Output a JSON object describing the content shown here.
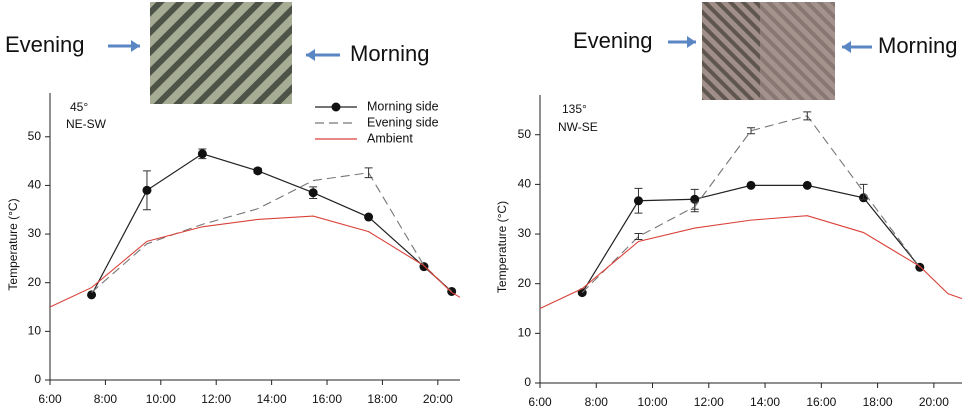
{
  "chart_data": [
    {
      "type": "line",
      "image_labels": [
        "Evening",
        "Morning"
      ],
      "annotations": [
        "45°",
        "NE-SW"
      ],
      "ylabel": "Temperature (°C)",
      "legend": "upper right",
      "xlim": [
        6,
        20.8
      ],
      "ylim": [
        0,
        59
      ],
      "xticks": [
        {
          "value": 6,
          "label": "6:00"
        },
        {
          "value": 8,
          "label": "8:00"
        },
        {
          "value": 10,
          "label": "10:00"
        },
        {
          "value": 12,
          "label": "12:00"
        },
        {
          "value": 14,
          "label": "14:00"
        },
        {
          "value": 16,
          "label": "16:00"
        },
        {
          "value": 18,
          "label": "18:00"
        },
        {
          "value": 20,
          "label": "20:00"
        }
      ],
      "yticks": [
        0,
        10,
        20,
        30,
        40,
        50
      ],
      "series": [
        {
          "name": "Morning side",
          "color": "#222222",
          "linestyle": "solid",
          "marker": "circle",
          "x": [
            7.5,
            9.5,
            11.5,
            13.5,
            15.5,
            17.5,
            19.5,
            20.5
          ],
          "values": [
            17.5,
            39,
            46.5,
            43,
            38.5,
            33.5,
            23.3,
            18.2
          ],
          "errors": [
            null,
            4,
            1,
            0.5,
            1.2,
            null,
            null,
            null
          ]
        },
        {
          "name": "Evening side",
          "color": "#777777",
          "linestyle": "dashed",
          "marker": "none",
          "x": [
            7.5,
            9.5,
            11.5,
            13.5,
            15.5,
            17.5,
            19.5,
            20.5
          ],
          "values": [
            18,
            28,
            32,
            35.2,
            41,
            42.6,
            23.5,
            18.2
          ],
          "errors": [
            null,
            null,
            null,
            null,
            null,
            1,
            null,
            null
          ]
        },
        {
          "name": "Ambient",
          "color": "#d9423a",
          "linestyle": "solid",
          "marker": "none",
          "x": [
            6,
            7.5,
            9.5,
            11.5,
            13.5,
            15.5,
            17.5,
            19.5,
            20.5,
            20.8
          ],
          "values": [
            15,
            19,
            28.5,
            31.5,
            33,
            33.7,
            30.5,
            23.5,
            18,
            17
          ]
        }
      ]
    },
    {
      "type": "line",
      "image_labels": [
        "Evening",
        "Morning"
      ],
      "annotations": [
        "135°",
        "NW-SE"
      ],
      "ylabel": "Temperature (°C)",
      "xlim": [
        6,
        21
      ],
      "ylim": [
        0,
        58
      ],
      "xticks": [
        {
          "value": 6,
          "label": "6:00"
        },
        {
          "value": 8,
          "label": "8:00"
        },
        {
          "value": 10,
          "label": "10:00"
        },
        {
          "value": 12,
          "label": "12:00"
        },
        {
          "value": 14,
          "label": "14:00"
        },
        {
          "value": 16,
          "label": "16:00"
        },
        {
          "value": 18,
          "label": "18:00"
        },
        {
          "value": 20,
          "label": "20:00"
        }
      ],
      "yticks": [
        0,
        10,
        20,
        30,
        40,
        50
      ],
      "series": [
        {
          "color": "#222222",
          "linestyle": "solid",
          "marker": "circle",
          "x": [
            7.5,
            9.5,
            11.5,
            13.5,
            15.5,
            17.5,
            19.5
          ],
          "values": [
            18.2,
            36.7,
            37,
            39.8,
            39.8,
            37.3,
            23.3
          ],
          "errors": [
            null,
            2.5,
            2,
            null,
            null,
            null,
            null
          ]
        },
        {
          "color": "#777777",
          "linestyle": "dashed",
          "marker": "none",
          "x": [
            7.5,
            9.5,
            11.5,
            13.5,
            15.5,
            17.5,
            19.5
          ],
          "values": [
            18.2,
            29.5,
            35.5,
            50.8,
            53.8,
            38.5,
            23.3
          ],
          "errors": [
            null,
            0.6,
            1,
            0.6,
            0.8,
            1.5,
            null
          ]
        },
        {
          "color": "#d9423a",
          "linestyle": "solid",
          "marker": "none",
          "x": [
            6,
            7.5,
            9.5,
            11.5,
            13.5,
            15.5,
            17.5,
            19.5,
            20.5,
            21
          ],
          "values": [
            15,
            19,
            28.5,
            31.2,
            32.8,
            33.7,
            30.3,
            23.5,
            18,
            17
          ]
        }
      ]
    }
  ]
}
